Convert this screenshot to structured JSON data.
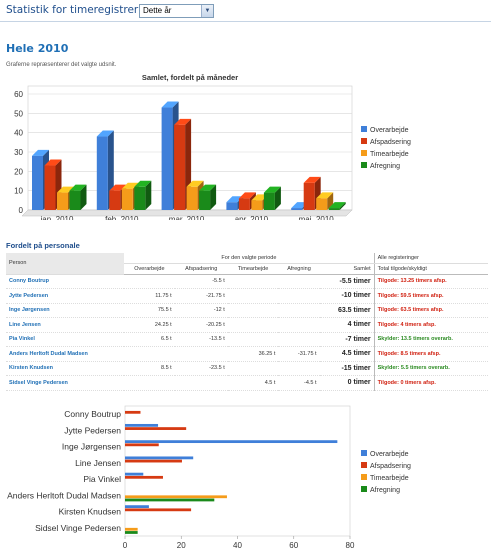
{
  "header": {
    "title": "Statistik for timeregistreringer",
    "period_value": "Dette år"
  },
  "section": {
    "title": "Hele 2010",
    "description": "Graferne repræsenterer det valgte udsnit."
  },
  "chart_data": [
    {
      "type": "bar",
      "title": "Samlet, fordelt på måneder",
      "categories": [
        "jan. 2010",
        "feb. 2010",
        "mar. 2010",
        "apr. 2010",
        "maj. 2010"
      ],
      "series": [
        {
          "name": "Overarbejde",
          "values": [
            28,
            38,
            53,
            4,
            1
          ]
        },
        {
          "name": "Afspadsering",
          "values": [
            23,
            10,
            44,
            6,
            14
          ]
        },
        {
          "name": "Timearbejde",
          "values": [
            9,
            11,
            12,
            5,
            6
          ]
        },
        {
          "name": "Afregning",
          "values": [
            10,
            12,
            10,
            9,
            1
          ]
        }
      ],
      "ylim": [
        0,
        60
      ],
      "yticks": [
        0,
        10,
        20,
        30,
        40,
        50,
        60
      ],
      "legend": "right",
      "grid": true
    },
    {
      "type": "bar",
      "orientation": "horizontal",
      "categories": [
        "Conny Boutrup",
        "Jytte Pedersen",
        "Inge Jørgensen",
        "Line Jensen",
        "Pia Vinkel",
        "Anders Herltoft Dudal Madsen",
        "Kirsten Knudsen",
        "Sidsel Vinge Pedersen"
      ],
      "series": [
        {
          "name": "Overarbejde",
          "values": [
            0,
            11.75,
            75.5,
            24.25,
            6.5,
            0,
            8.5,
            0
          ]
        },
        {
          "name": "Afspadsering",
          "values": [
            5.5,
            21.75,
            12,
            20.25,
            13.5,
            0,
            23.5,
            0
          ]
        },
        {
          "name": "Timearbejde",
          "values": [
            0,
            0,
            0,
            0,
            0,
            36.25,
            0,
            4.5
          ]
        },
        {
          "name": "Afregning",
          "values": [
            0,
            0,
            0,
            0,
            0,
            31.75,
            0,
            4.5
          ]
        }
      ],
      "xlim": [
        0,
        80
      ],
      "xticks": [
        0,
        20,
        40,
        60,
        80
      ],
      "legend": "right",
      "grid": false
    }
  ],
  "colors": {
    "Overarbejde": "#3f7fd9",
    "Afspadsering": "#d63a12",
    "Timearbejde": "#f59c1a",
    "Afregning": "#1a8a1a"
  },
  "table": {
    "title": "Fordelt på personale",
    "group_header": "For den valgte periode",
    "alle_header": "Alle registeringer",
    "columns": {
      "person": "Person",
      "overarbejde": "Overarbejde",
      "afspadsering": "Afspadsering",
      "timearbejde": "Timearbejde",
      "afregning": "Afregning",
      "samlet": "Samlet",
      "total": "Total tilgode/skyldigt"
    },
    "rows": [
      {
        "name": "Conny Boutrup",
        "overarbejde": "",
        "afspadsering": "-5.5 t",
        "timearbejde": "",
        "afregning": "",
        "samlet": "-5.5 timer",
        "status": "Tilgode: 13.25 timers afsp.",
        "status_color": "red"
      },
      {
        "name": "Jytte Pedersen",
        "overarbejde": "11.75 t",
        "afspadsering": "-21.75 t",
        "timearbejde": "",
        "afregning": "",
        "samlet": "-10 timer",
        "status": "Tilgode: 59.5 timers afsp.",
        "status_color": "red"
      },
      {
        "name": "Inge Jørgensen",
        "overarbejde": "75.5 t",
        "afspadsering": "-12 t",
        "timearbejde": "",
        "afregning": "",
        "samlet": "63.5 timer",
        "status": "Tilgode: 63.5 timers afsp.",
        "status_color": "red"
      },
      {
        "name": "Line Jensen",
        "overarbejde": "24.25 t",
        "afspadsering": "-20.25 t",
        "timearbejde": "",
        "afregning": "",
        "samlet": "4 timer",
        "status": "Tilgode: 4 timers afsp.",
        "status_color": "red"
      },
      {
        "name": "Pia Vinkel",
        "overarbejde": "6.5 t",
        "afspadsering": "-13.5 t",
        "timearbejde": "",
        "afregning": "",
        "samlet": "-7 timer",
        "status": "Skylder: 13.5 timers overarb.",
        "status_color": "green"
      },
      {
        "name": "Anders Herltoft Dudal Madsen",
        "overarbejde": "",
        "afspadsering": "",
        "timearbejde": "36.25 t",
        "afregning": "-31.75 t",
        "samlet": "4.5 timer",
        "status": "Tilgode: 8.5 timers afsp.",
        "status_color": "red"
      },
      {
        "name": "Kirsten Knudsen",
        "overarbejde": "8.5 t",
        "afspadsering": "-23.5 t",
        "timearbejde": "",
        "afregning": "",
        "samlet": "-15 timer",
        "status": "Skylder: 5.5 timers overarb.",
        "status_color": "green"
      },
      {
        "name": "Sidsel Vinge Pedersen",
        "overarbejde": "",
        "afspadsering": "",
        "timearbejde": "4.5 t",
        "afregning": "-4.5 t",
        "samlet": "0 timer",
        "status": "Tilgode: 0 timers afsp.",
        "status_color": "red"
      }
    ]
  }
}
